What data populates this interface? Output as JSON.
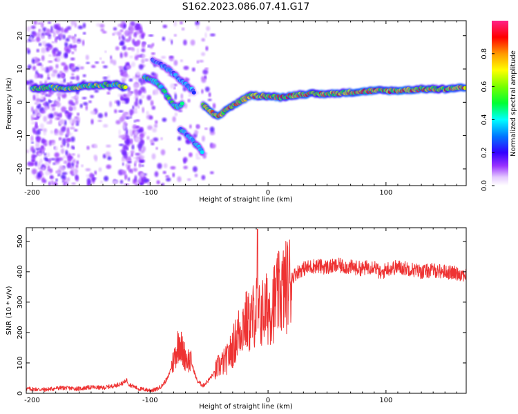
{
  "figure_title": "S162.2023.086.07.41.G17",
  "chart_data": [
    {
      "type": "heatmap",
      "xlabel": "Height of straight line (km)",
      "ylabel": "Frequency (Hz)",
      "xlim": [
        -205,
        168
      ],
      "ylim": [
        -25,
        24.5
      ],
      "x_ticks": [
        -200,
        -100,
        0,
        100
      ],
      "x_tick_labels": [
        "-200",
        "-100",
        "0",
        "100"
      ],
      "y_ticks": [
        -20,
        -10,
        0,
        10,
        20
      ],
      "y_tick_labels": [
        "-20",
        "-10",
        "0",
        "10",
        "20"
      ],
      "colorbar": {
        "label": "Normalized spectral amplitude",
        "range": [
          0,
          1
        ],
        "ticks": [
          0.0,
          0.2,
          0.4,
          0.6,
          0.8
        ],
        "tick_labels": [
          "0.0",
          "0.2",
          "0.4",
          "0.6",
          "0.8"
        ]
      },
      "ridges": [
        {
          "points": [
            [
              -200,
              4
            ],
            [
              -185,
              4.5
            ],
            [
              -170,
              4.2
            ],
            [
              -155,
              5
            ],
            [
              -140,
              5.2
            ],
            [
              -130,
              5.5
            ],
            [
              -120,
              4.5
            ]
          ],
          "amplitude": 0.7
        },
        {
          "points": [
            [
              -105,
              7.5
            ],
            [
              -95,
              6
            ],
            [
              -88,
              3.5
            ],
            [
              -82,
              0
            ],
            [
              -78,
              -1.5
            ],
            [
              -72,
              -0.5
            ]
          ],
          "amplitude": 0.55
        },
        {
          "points": [
            [
              -98,
              13
            ],
            [
              -85,
              10
            ],
            [
              -72,
              6
            ],
            [
              -62,
              3
            ]
          ],
          "amplitude": 0.4
        },
        {
          "points": [
            [
              -75,
              -8
            ],
            [
              -68,
              -10
            ],
            [
              -60,
              -13
            ],
            [
              -55,
              -15
            ]
          ],
          "amplitude": 0.45
        },
        {
          "points": [
            [
              -55,
              -1
            ],
            [
              -48,
              -3
            ],
            [
              -42,
              -4.5
            ],
            [
              -35,
              -2
            ],
            [
              -25,
              0
            ],
            [
              -15,
              2
            ],
            [
              -5,
              2
            ],
            [
              10,
              1.5
            ],
            [
              30,
              2.5
            ],
            [
              50,
              2.5
            ],
            [
              70,
              3
            ],
            [
              90,
              3.5
            ],
            [
              110,
              3.5
            ],
            [
              130,
              4
            ],
            [
              150,
              4
            ],
            [
              168,
              4.5
            ]
          ],
          "amplitude": 0.9
        }
      ]
    },
    {
      "type": "line",
      "xlabel": "Height of straight line (km)",
      "ylabel": "SNR (10 * v/v)",
      "xlim": [
        -205,
        168
      ],
      "ylim": [
        0,
        545
      ],
      "x_ticks": [
        -200,
        -100,
        0,
        100
      ],
      "x_tick_labels": [
        "-200",
        "-100",
        "0",
        "100"
      ],
      "y_ticks": [
        0,
        100,
        200,
        300,
        400,
        500
      ],
      "y_tick_labels": [
        "0",
        "100",
        "200",
        "300",
        "400",
        "500"
      ],
      "color": "#ee3333",
      "series": [
        {
          "x": [
            -205,
            -190,
            -175,
            -160,
            -150,
            -140,
            -130,
            -122,
            -120,
            -118,
            -110,
            -100,
            -95,
            -90,
            -85,
            -80,
            -77,
            -75,
            -73,
            -70,
            -65,
            -60,
            -55,
            -50,
            -45,
            -42,
            -40,
            -35,
            -30,
            -25,
            -20,
            -15,
            -12,
            -10,
            -8,
            -5,
            0,
            5,
            10,
            15,
            20,
            25,
            30,
            40,
            50,
            60,
            70,
            80,
            90,
            95,
            96,
            100,
            110,
            120,
            130,
            140,
            150,
            160,
            168
          ],
          "y": [
            15,
            12,
            18,
            15,
            20,
            18,
            25,
            35,
            45,
            30,
            15,
            10,
            12,
            25,
            50,
            110,
            150,
            180,
            140,
            120,
            100,
            40,
            25,
            45,
            70,
            90,
            95,
            110,
            150,
            200,
            240,
            230,
            260,
            280,
            250,
            265,
            280,
            300,
            330,
            350,
            380,
            400,
            410,
            420,
            415,
            420,
            415,
            410,
            420,
            395,
            390,
            410,
            415,
            410,
            400,
            405,
            400,
            395,
            390
          ]
        }
      ]
    }
  ]
}
